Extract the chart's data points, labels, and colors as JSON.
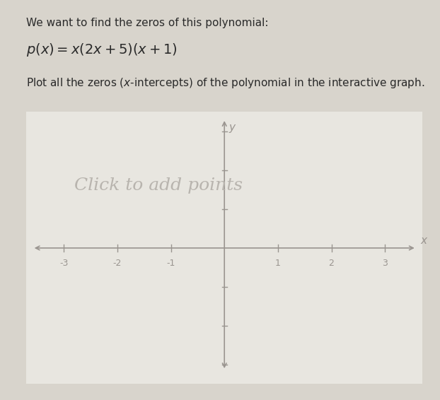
{
  "title_line1": "We want to find the zeros of this polynomial:",
  "formula": "$p(x) = x(2x+5)(x+1)$",
  "instruction": "Plot all the zeros ($x$-intercepts) of the polynomial in the interactive graph.",
  "watermark": "Click to add points",
  "x_ticks": [
    -3,
    -2,
    -1,
    1,
    2,
    3
  ],
  "x_label": "x",
  "y_label": "y",
  "xlim": [
    -3.7,
    3.7
  ],
  "ylim": [
    -3.5,
    3.5
  ],
  "background_color": "#d8d4cc",
  "graph_bg_color": "#e8e6e0",
  "axis_color": "#9a9590",
  "text_color": "#2a2a2a",
  "watermark_color": "#b8b4ae",
  "tick_label_color": "#9a9590",
  "font_size_title": 11,
  "font_size_formula": 14,
  "font_size_instruction": 11,
  "font_size_watermark": 18,
  "font_size_ticks": 9
}
